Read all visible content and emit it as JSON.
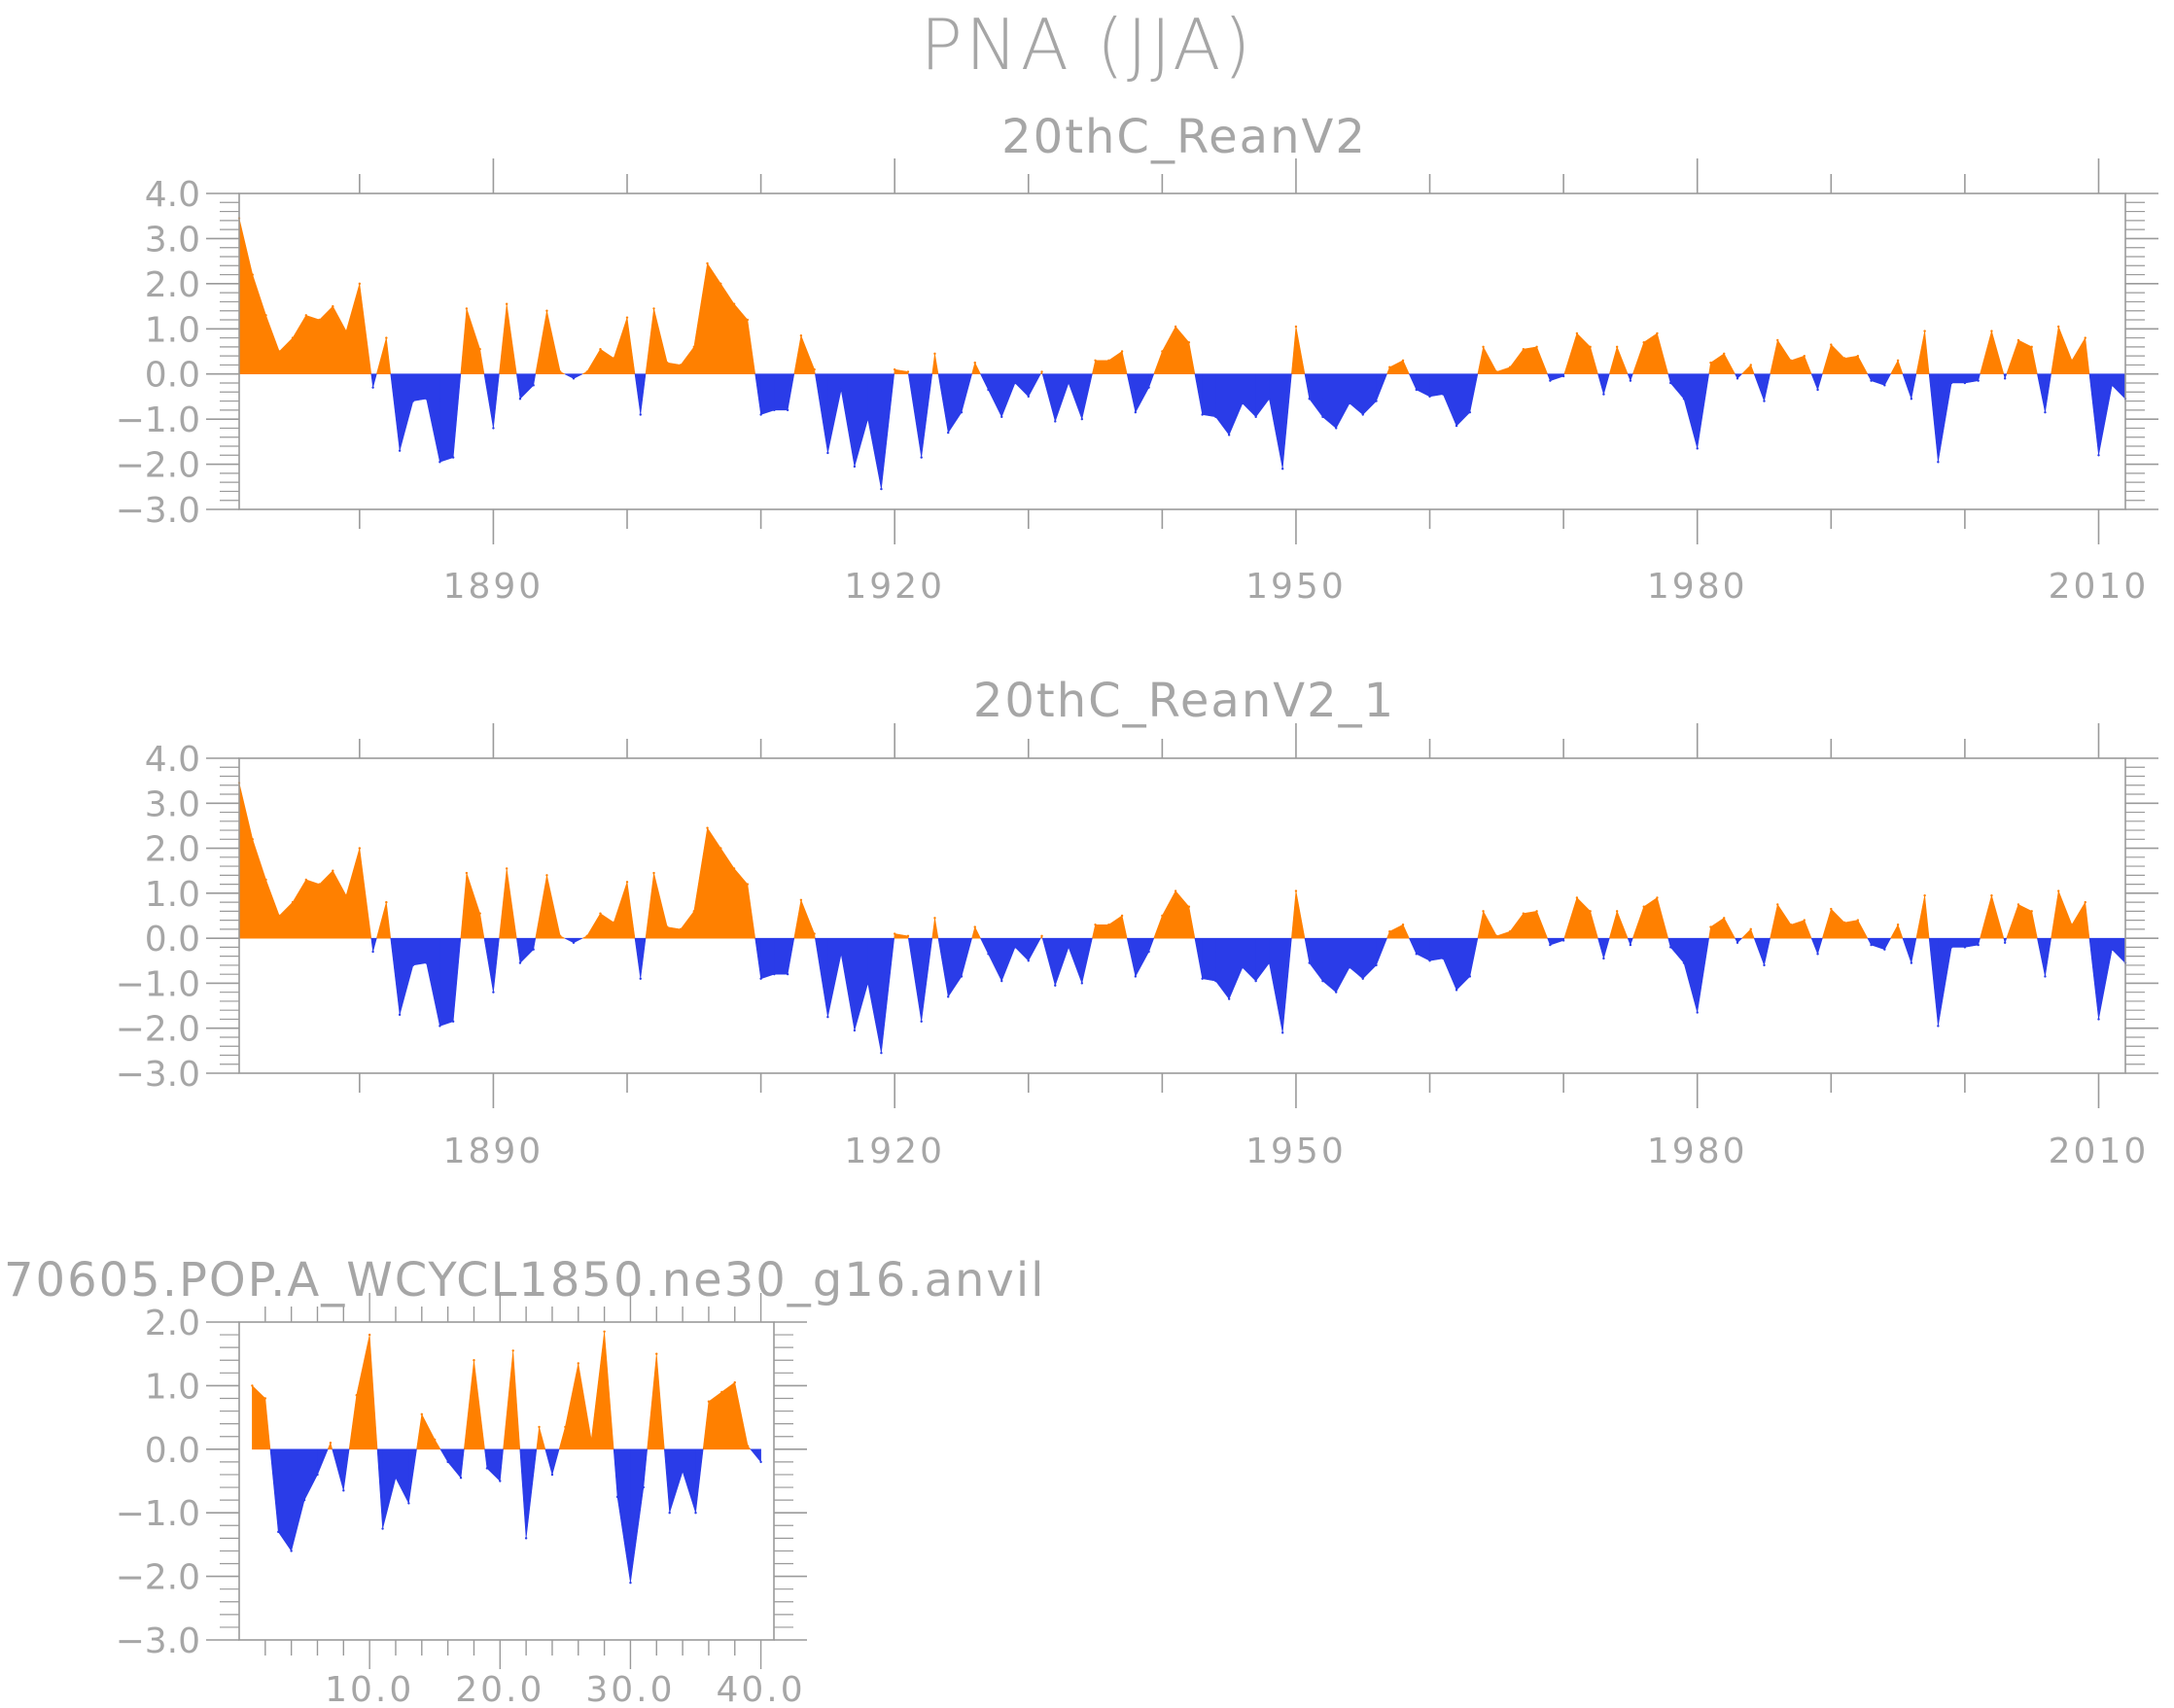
{
  "title": "PNA (JJA)",
  "colors": {
    "positive": "#ff8000",
    "negative": "#2a3ce8",
    "axis": "#9a9a9a",
    "text": "#a6a6a6"
  },
  "chart_data": [
    {
      "type": "area",
      "id": "panel1",
      "title": "20thC_ReanV2",
      "xlim": [
        1871,
        2012
      ],
      "ylim": [
        -3,
        4
      ],
      "yticks": [
        "4.0",
        "3.0",
        "2.0",
        "1.0",
        "0.0",
        "−1.0",
        "−2.0",
        "−3.0"
      ],
      "ytick_values": [
        4,
        3,
        2,
        1,
        0,
        -1,
        -2,
        -3
      ],
      "xticks": [
        "1890",
        "1920",
        "1950",
        "1980",
        "2010"
      ],
      "xtick_values": [
        1890,
        1920,
        1950,
        1980,
        2010
      ],
      "x_start": 1871,
      "values": [
        3.45,
        2.2,
        1.3,
        0.5,
        0.8,
        1.3,
        1.2,
        1.5,
        0.95,
        2.0,
        -0.3,
        0.8,
        -1.7,
        -0.6,
        -0.55,
        -1.95,
        -1.85,
        1.45,
        0.55,
        -1.2,
        1.55,
        -0.55,
        -0.25,
        1.4,
        0.05,
        -0.1,
        0.05,
        0.55,
        0.35,
        1.25,
        -0.9,
        1.45,
        0.25,
        0.2,
        0.6,
        2.45,
        2.0,
        1.55,
        1.2,
        -0.9,
        -0.8,
        -0.8,
        0.85,
        0.1,
        -1.75,
        -0.35,
        -2.05,
        -1.0,
        -2.55,
        0.1,
        0.05,
        -1.85,
        0.45,
        -1.3,
        -0.85,
        0.25,
        -0.35,
        -0.95,
        -0.2,
        -0.5,
        0.05,
        -1.05,
        -0.2,
        -1.0,
        0.3,
        0.3,
        0.5,
        -0.85,
        -0.3,
        0.5,
        1.05,
        0.7,
        -0.9,
        -0.95,
        -1.35,
        -0.65,
        -0.95,
        -0.55,
        -2.1,
        1.05,
        -0.55,
        -0.95,
        -1.2,
        -0.65,
        -0.9,
        -0.6,
        0.15,
        0.3,
        -0.35,
        -0.5,
        -0.45,
        -1.15,
        -0.85,
        0.6,
        0.05,
        0.15,
        0.55,
        0.6,
        -0.15,
        -0.05,
        0.9,
        0.6,
        -0.45,
        0.6,
        -0.15,
        0.7,
        0.9,
        -0.2,
        -0.55,
        -1.65,
        0.25,
        0.45,
        -0.1,
        0.2,
        -0.6,
        0.75,
        0.3,
        0.4,
        -0.35,
        0.65,
        0.35,
        0.4,
        -0.15,
        -0.25,
        0.3,
        -0.55,
        0.95,
        -1.95,
        -0.2,
        -0.2,
        -0.15,
        0.95,
        -0.1,
        0.75,
        0.6,
        -0.85,
        1.05,
        0.3,
        0.8,
        -1.8,
        -0.25,
        -0.55
      ]
    },
    {
      "type": "area",
      "id": "panel2",
      "title": "20thC_ReanV2_1",
      "xlim": [
        1871,
        2012
      ],
      "ylim": [
        -3,
        4
      ],
      "yticks": [
        "4.0",
        "3.0",
        "2.0",
        "1.0",
        "0.0",
        "−1.0",
        "−2.0",
        "−3.0"
      ],
      "ytick_values": [
        4,
        3,
        2,
        1,
        0,
        -1,
        -2,
        -3
      ],
      "xticks": [
        "1890",
        "1920",
        "1950",
        "1980",
        "2010"
      ],
      "xtick_values": [
        1890,
        1920,
        1950,
        1980,
        2010
      ],
      "x_start": 1871,
      "values": [
        3.45,
        2.2,
        1.3,
        0.5,
        0.8,
        1.3,
        1.2,
        1.5,
        0.95,
        2.0,
        -0.3,
        0.8,
        -1.7,
        -0.6,
        -0.55,
        -1.95,
        -1.85,
        1.45,
        0.55,
        -1.2,
        1.55,
        -0.55,
        -0.25,
        1.4,
        0.05,
        -0.1,
        0.05,
        0.55,
        0.35,
        1.25,
        -0.9,
        1.45,
        0.25,
        0.2,
        0.6,
        2.45,
        2.0,
        1.55,
        1.2,
        -0.9,
        -0.8,
        -0.8,
        0.85,
        0.1,
        -1.75,
        -0.35,
        -2.05,
        -1.0,
        -2.55,
        0.1,
        0.05,
        -1.85,
        0.45,
        -1.3,
        -0.85,
        0.25,
        -0.35,
        -0.95,
        -0.2,
        -0.5,
        0.05,
        -1.05,
        -0.2,
        -1.0,
        0.3,
        0.3,
        0.5,
        -0.85,
        -0.3,
        0.5,
        1.05,
        0.7,
        -0.9,
        -0.95,
        -1.35,
        -0.65,
        -0.95,
        -0.55,
        -2.1,
        1.05,
        -0.55,
        -0.95,
        -1.2,
        -0.65,
        -0.9,
        -0.6,
        0.15,
        0.3,
        -0.35,
        -0.5,
        -0.45,
        -1.15,
        -0.85,
        0.6,
        0.05,
        0.15,
        0.55,
        0.6,
        -0.15,
        -0.05,
        0.9,
        0.6,
        -0.45,
        0.6,
        -0.15,
        0.7,
        0.9,
        -0.2,
        -0.55,
        -1.65,
        0.25,
        0.45,
        -0.1,
        0.2,
        -0.6,
        0.75,
        0.3,
        0.4,
        -0.35,
        0.65,
        0.35,
        0.4,
        -0.15,
        -0.25,
        0.3,
        -0.55,
        0.95,
        -1.95,
        -0.2,
        -0.2,
        -0.15,
        0.95,
        -0.1,
        0.75,
        0.6,
        -0.85,
        1.05,
        0.3,
        0.8,
        -1.8,
        -0.25,
        -0.55
      ]
    },
    {
      "type": "area",
      "id": "panel3",
      "title": "70605.POP.A_WCYCL1850.ne30_g16.anvil",
      "xlim": [
        0,
        41
      ],
      "ylim": [
        -3,
        2
      ],
      "yticks": [
        "2.0",
        "1.0",
        "0.0",
        "−1.0",
        "−2.0",
        "−3.0"
      ],
      "ytick_values": [
        2,
        1,
        0,
        -1,
        -2,
        -3
      ],
      "xticks": [
        "10.0",
        "20.0",
        "30.0",
        "40.0"
      ],
      "xtick_values": [
        10,
        20,
        30,
        40
      ],
      "x_start": 1,
      "values": [
        1.0,
        0.8,
        -1.3,
        -1.6,
        -0.8,
        -0.4,
        0.1,
        -0.65,
        0.85,
        1.8,
        -1.25,
        -0.45,
        -0.85,
        0.55,
        0.15,
        -0.2,
        -0.45,
        1.4,
        -0.3,
        -0.5,
        1.55,
        -1.4,
        0.35,
        -0.4,
        0.35,
        1.35,
        0.15,
        1.85,
        -0.75,
        -2.1,
        -0.6,
        1.5,
        -1.0,
        -0.35,
        -1.0,
        0.75,
        0.9,
        1.05,
        0.05,
        -0.2
      ]
    }
  ]
}
